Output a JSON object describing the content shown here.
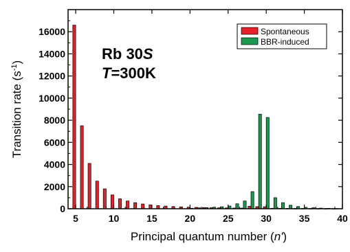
{
  "chart_data": {
    "type": "bar",
    "xlabel_main": "Principal quantum number (",
    "xlabel_var": "n'",
    "xlabel_end": ")",
    "ylabel_main": "Transition rate (s",
    "ylabel_sup": "-1",
    "ylabel_end": ")",
    "xlim": [
      4,
      40
    ],
    "ylim": [
      0,
      18000
    ],
    "xticks": [
      5,
      10,
      15,
      20,
      25,
      30,
      35,
      40
    ],
    "yticks": [
      0,
      2000,
      4000,
      6000,
      8000,
      10000,
      12000,
      14000,
      16000
    ],
    "annotation": {
      "line1_prefix": "Rb 30",
      "line1_italic": "S",
      "line2_italic": "T",
      "line2_suffix": "=300K"
    },
    "legend_position": "top-right",
    "series": [
      {
        "name": "Spontaneous",
        "color": "#e8202a",
        "points": [
          [
            5,
            16600
          ],
          [
            6,
            7500
          ],
          [
            7,
            4100
          ],
          [
            8,
            2500
          ],
          [
            9,
            1800
          ],
          [
            10,
            1250
          ],
          [
            11,
            900
          ],
          [
            12,
            700
          ],
          [
            13,
            550
          ],
          [
            14,
            430
          ],
          [
            15,
            350
          ],
          [
            16,
            290
          ],
          [
            17,
            240
          ],
          [
            18,
            200
          ],
          [
            19,
            170
          ],
          [
            20,
            145
          ],
          [
            21,
            125
          ],
          [
            22,
            110
          ],
          [
            23,
            95
          ],
          [
            24,
            85
          ],
          [
            25,
            75
          ],
          [
            26,
            65
          ],
          [
            27,
            60
          ],
          [
            28,
            230
          ],
          [
            29,
            190
          ],
          [
            30,
            180
          ],
          [
            31,
            45
          ],
          [
            32,
            40
          ],
          [
            33,
            35
          ],
          [
            34,
            30
          ],
          [
            35,
            28
          ],
          [
            36,
            25
          ],
          [
            37,
            22
          ],
          [
            38,
            20
          ],
          [
            39,
            18
          ]
        ]
      },
      {
        "name": "BBR-induced",
        "color": "#1a9a50",
        "points": [
          [
            5,
            0
          ],
          [
            6,
            0
          ],
          [
            7,
            0
          ],
          [
            8,
            0
          ],
          [
            9,
            0
          ],
          [
            10,
            0
          ],
          [
            11,
            0
          ],
          [
            12,
            0
          ],
          [
            13,
            0
          ],
          [
            14,
            0
          ],
          [
            15,
            0
          ],
          [
            16,
            0
          ],
          [
            17,
            0
          ],
          [
            18,
            0
          ],
          [
            19,
            0
          ],
          [
            20,
            50
          ],
          [
            21,
            80
          ],
          [
            22,
            100
          ],
          [
            23,
            140
          ],
          [
            24,
            180
          ],
          [
            25,
            250
          ],
          [
            26,
            450
          ],
          [
            27,
            700
          ],
          [
            28,
            1550
          ],
          [
            29,
            8550
          ],
          [
            30,
            8250
          ],
          [
            31,
            1000
          ],
          [
            32,
            550
          ],
          [
            33,
            320
          ],
          [
            34,
            200
          ],
          [
            35,
            130
          ],
          [
            36,
            90
          ],
          [
            37,
            60
          ],
          [
            38,
            40
          ],
          [
            39,
            25
          ]
        ]
      }
    ]
  }
}
